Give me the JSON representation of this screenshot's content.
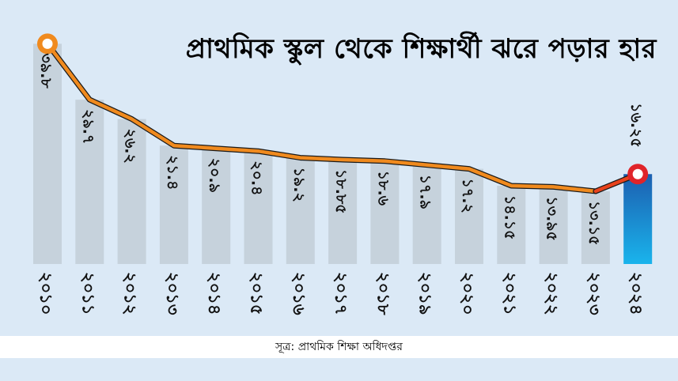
{
  "title": "প্রাথমিক স্কুল থেকে শিক্ষার্থী ঝরে পড়ার হার",
  "source": "সূত্র: প্রাথমিক শিক্ষা অধিদপ্তর",
  "colors": {
    "background": "#dbe9f6",
    "bar": "#c6d2dc",
    "highlight_bar_top": "#1c5fb0",
    "highlight_bar_bottom": "#1ab4ec",
    "line": "#f08a1e",
    "line_edge": "#1a1a1a",
    "last_segment": "#e8421c",
    "marker_first_fill": "#ffffff",
    "marker_first_ring": "#f08a1e",
    "marker_last_ring": "#e0242a"
  },
  "chart_data": {
    "type": "bar",
    "overlay": "line",
    "title": "প্রাথমিক স্কুল থেকে শিক্ষার্থী ঝরে পড়ার হার",
    "categories": [
      "২০১০",
      "২০১১",
      "২০১২",
      "২০১৩",
      "২০১৪",
      "২০১৫",
      "২০১৬",
      "২০১৭",
      "২০১৮",
      "২০১৯",
      "২০২০",
      "২০২১",
      "২০২২",
      "২০২৩",
      "২০২৪"
    ],
    "values": [
      39.8,
      29.7,
      26.2,
      21.4,
      20.9,
      20.4,
      19.2,
      18.85,
      18.6,
      17.9,
      17.2,
      14.15,
      13.95,
      13.15,
      16.25
    ],
    "value_labels": [
      "৩৯.৮",
      "২৯.৭",
      "২৬.২",
      "২১.৪",
      "২০.৯",
      "২০.৪",
      "১৯.২",
      "১৮.৮৫",
      "১৮.৬",
      "১৭.৯",
      "১৭.২",
      "১৪.১৫",
      "১৩.৯৫",
      "১৩.১৫",
      "১৬.২৫"
    ],
    "highlight_index": 14,
    "ylim": [
      0,
      42
    ],
    "grid": false,
    "legend": "none"
  }
}
